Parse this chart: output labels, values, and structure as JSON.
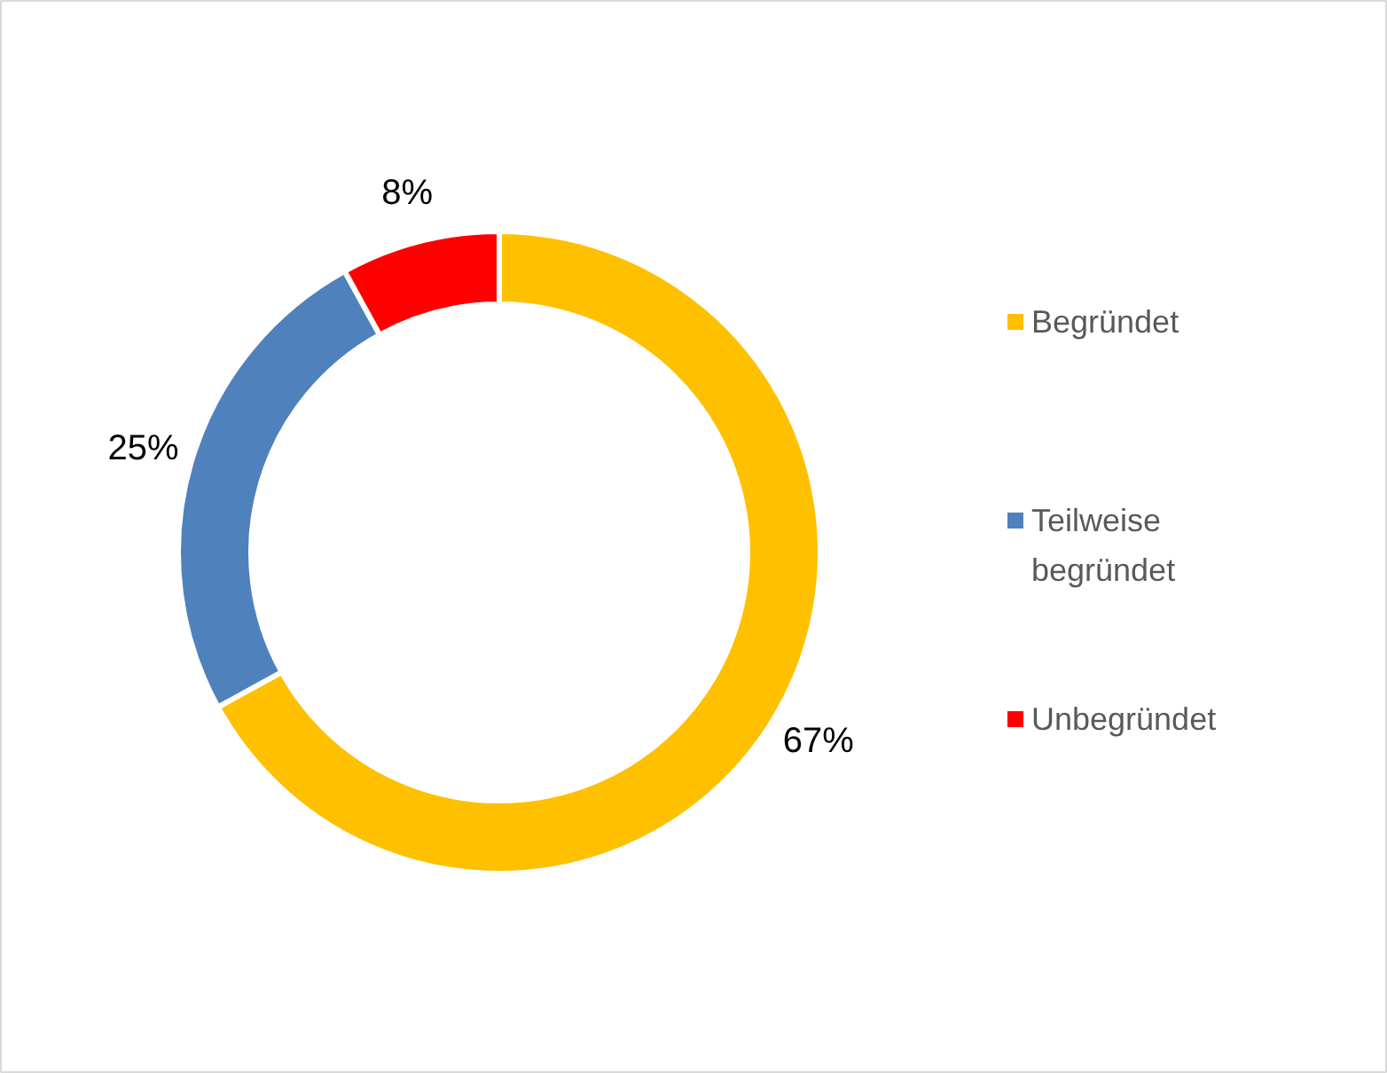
{
  "chart_data": {
    "type": "donut",
    "categories": [
      "Begründet",
      "Teilweise begründet",
      "Unbegründet"
    ],
    "values": [
      67,
      25,
      8
    ],
    "value_labels": [
      "67%",
      "25%",
      "8%"
    ],
    "colors": [
      "#ffc000",
      "#4f81bd",
      "#ff0000"
    ],
    "legend": "right"
  }
}
